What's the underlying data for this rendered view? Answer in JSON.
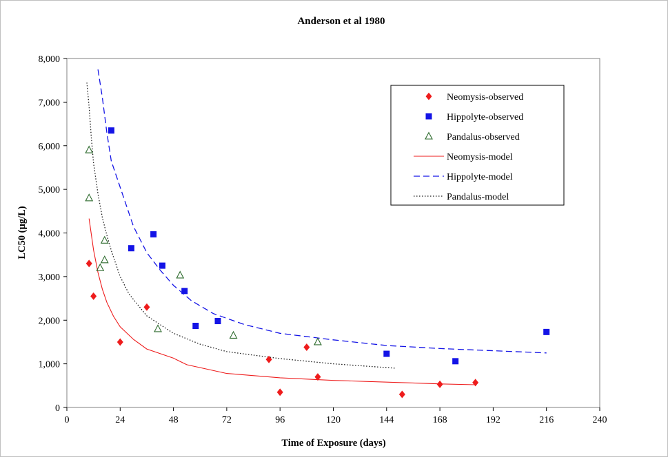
{
  "chart_data": {
    "type": "scatter",
    "title": "Anderson et al 1980",
    "xlabel": "Time of Exposure (days)",
    "ylabel": "LC50 (µg/L)",
    "xlim": [
      0,
      240
    ],
    "ylim": [
      0,
      8000
    ],
    "x_ticks": [
      0,
      24,
      48,
      72,
      96,
      120,
      144,
      168,
      192,
      216,
      240
    ],
    "y_ticks": [
      0,
      1000,
      2000,
      3000,
      4000,
      5000,
      6000,
      7000,
      8000
    ],
    "x_tick_labels": [
      "0",
      "24",
      "48",
      "72",
      "96",
      "120",
      "144",
      "168",
      "192",
      "216",
      "240"
    ],
    "y_tick_labels": [
      "0",
      "1,000",
      "2,000",
      "3,000",
      "4,000",
      "5,000",
      "6,000",
      "7,000",
      "8,000"
    ],
    "grid": false,
    "legend_position": "top-right",
    "series": [
      {
        "name": "Neomysis-observed",
        "kind": "points",
        "marker": "diamond",
        "color": "#ee1c1c",
        "points": [
          [
            10,
            3300
          ],
          [
            12,
            2550
          ],
          [
            24,
            1500
          ],
          [
            36,
            2300
          ],
          [
            91,
            1100
          ],
          [
            96,
            350
          ],
          [
            108,
            1380
          ],
          [
            113,
            700
          ],
          [
            151,
            300
          ],
          [
            168,
            530
          ],
          [
            184,
            570
          ]
        ]
      },
      {
        "name": "Hippolyte-observed",
        "kind": "points",
        "marker": "square",
        "color": "#1414e6",
        "points": [
          [
            20,
            6350
          ],
          [
            29,
            3650
          ],
          [
            39,
            3970
          ],
          [
            43,
            3250
          ],
          [
            53,
            2670
          ],
          [
            58,
            1870
          ],
          [
            68,
            1980
          ],
          [
            144,
            1230
          ],
          [
            175,
            1060
          ],
          [
            216,
            1730
          ]
        ]
      },
      {
        "name": "Pandalus-observed",
        "kind": "points",
        "marker": "triangle-open",
        "color": "#2e6b2e",
        "points": [
          [
            10,
            5900
          ],
          [
            10,
            4800
          ],
          [
            15,
            3200
          ],
          [
            17,
            3830
          ],
          [
            17,
            3380
          ],
          [
            41,
            1800
          ],
          [
            51,
            3030
          ],
          [
            75,
            1650
          ],
          [
            113,
            1500
          ]
        ]
      },
      {
        "name": "Neomysis-model",
        "kind": "line",
        "dash": "solid",
        "color": "#ee1c1c",
        "points": [
          [
            10,
            4330
          ],
          [
            12,
            3610
          ],
          [
            14,
            3095
          ],
          [
            16,
            2710
          ],
          [
            18,
            2410
          ],
          [
            21,
            2090
          ],
          [
            24,
            1850
          ],
          [
            30,
            1560
          ],
          [
            36,
            1340
          ],
          [
            48,
            1130
          ],
          [
            54,
            980
          ],
          [
            72,
            780
          ],
          [
            96,
            680
          ],
          [
            120,
            620
          ],
          [
            144,
            580
          ],
          [
            168,
            540
          ],
          [
            184,
            520
          ]
        ]
      },
      {
        "name": "Hippolyte-model",
        "kind": "line",
        "dash": "dashed",
        "color": "#1414e6",
        "points": [
          [
            14,
            7750
          ],
          [
            16,
            7100
          ],
          [
            18,
            6300
          ],
          [
            20,
            5650
          ],
          [
            24,
            5050
          ],
          [
            30,
            4150
          ],
          [
            36,
            3550
          ],
          [
            42,
            3150
          ],
          [
            48,
            2800
          ],
          [
            56,
            2450
          ],
          [
            66,
            2150
          ],
          [
            80,
            1900
          ],
          [
            96,
            1700
          ],
          [
            120,
            1550
          ],
          [
            144,
            1420
          ],
          [
            168,
            1350
          ],
          [
            192,
            1300
          ],
          [
            216,
            1250
          ]
        ]
      },
      {
        "name": "Pandalus-model",
        "kind": "line",
        "dash": "dotted",
        "color": "#1a1a1a",
        "points": [
          [
            9,
            7450
          ],
          [
            10,
            6900
          ],
          [
            11,
            6200
          ],
          [
            12,
            5600
          ],
          [
            14,
            4900
          ],
          [
            16,
            4350
          ],
          [
            18,
            3950
          ],
          [
            20,
            3600
          ],
          [
            24,
            3000
          ],
          [
            28,
            2600
          ],
          [
            36,
            2100
          ],
          [
            48,
            1700
          ],
          [
            60,
            1450
          ],
          [
            72,
            1280
          ],
          [
            96,
            1120
          ],
          [
            120,
            1000
          ],
          [
            148,
            900
          ]
        ]
      }
    ]
  }
}
